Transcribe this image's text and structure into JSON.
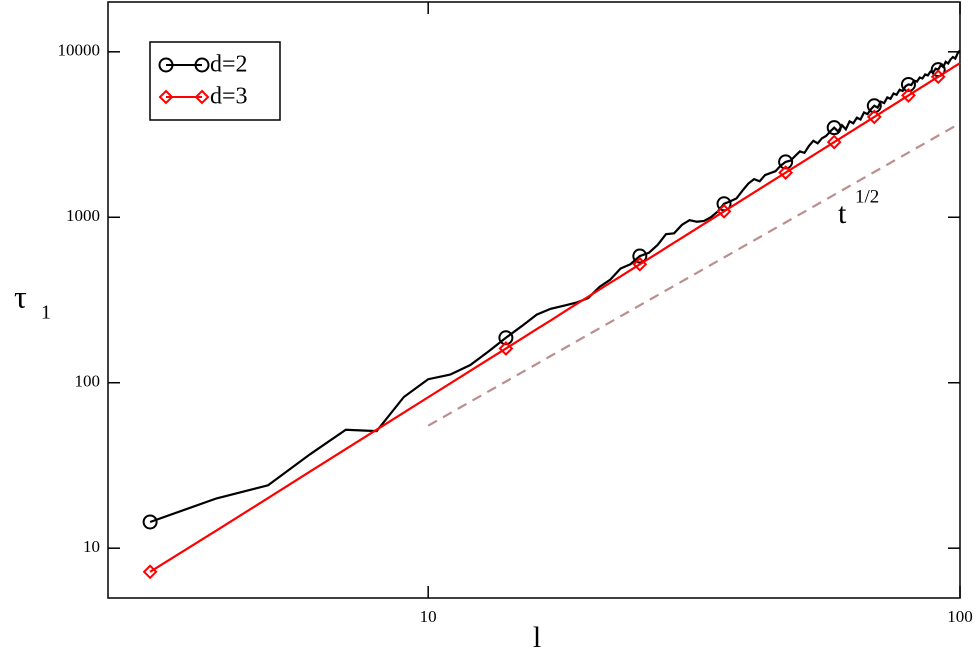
{
  "chart_data": {
    "type": "line",
    "xlabel": "l",
    "ylabel": {
      "text": "τ",
      "subscript": "1"
    },
    "log_x": true,
    "log_y": true,
    "xlim": [
      2.5,
      100
    ],
    "ylim": [
      5,
      20000
    ],
    "xticks": [
      10,
      100
    ],
    "yticks": [
      10,
      100,
      1000,
      10000
    ],
    "legend": "upper-left",
    "x": [
      3,
      4,
      5,
      6,
      7,
      8,
      9,
      10,
      11,
      12,
      13,
      14,
      15,
      16,
      17,
      18,
      19,
      20,
      21,
      22,
      23,
      24,
      25,
      26,
      27,
      28,
      29,
      30,
      31,
      32,
      33,
      34,
      35,
      36,
      37,
      38,
      39,
      40,
      41,
      42,
      43,
      44,
      45,
      46,
      47,
      48,
      49,
      50,
      51,
      52,
      53,
      54,
      55,
      56,
      57,
      58,
      59,
      60,
      61,
      62,
      63,
      64,
      65,
      66,
      67,
      68,
      69,
      70,
      71,
      72,
      73,
      74,
      75,
      76,
      77,
      78,
      79,
      80,
      81,
      82,
      83,
      84,
      85,
      86,
      87,
      88,
      89,
      90,
      91,
      92,
      93,
      94,
      95,
      96,
      97,
      98,
      99,
      100
    ],
    "series": [
      {
        "name": "d=2",
        "color": "#000000",
        "marker": "circle",
        "marker_every": 11,
        "values": [
          14.4,
          20,
          24,
          37,
          52,
          51,
          82,
          105,
          112,
          128,
          155,
          187,
          220,
          258,
          280,
          292,
          305,
          325,
          380,
          420,
          490,
          520,
          583,
          610,
          680,
          790,
          800,
          900,
          960,
          940,
          950,
          1000,
          1080,
          1206,
          1250,
          1300,
          1450,
          1600,
          1700,
          1650,
          1800,
          1850,
          1900,
          2050,
          2160,
          2200,
          2350,
          2500,
          2450,
          2700,
          2900,
          2800,
          3000,
          3100,
          3300,
          3480,
          3300,
          3600,
          3400,
          3800,
          3700,
          4000,
          3900,
          4300,
          4200,
          4500,
          4720,
          4600,
          5000,
          4900,
          5300,
          5200,
          5600,
          5500,
          5900,
          5800,
          6200,
          6350,
          6300,
          6700,
          6600,
          7000,
          6900,
          7300,
          7200,
          7600,
          7500,
          7900,
          7800,
          8300,
          8100,
          8700,
          8500,
          9000,
          9300,
          9100,
          9800,
          10200
        ]
      },
      {
        "name": "d=3",
        "color": "#ff0000",
        "marker": "diamond",
        "marker_every": 11,
        "values": [
          7.2,
          12.8,
          20.1,
          29.1,
          39.7,
          52.0,
          66.0,
          81.7,
          99.0,
          118,
          138.8,
          161,
          185,
          211,
          238,
          268,
          299,
          331,
          366,
          402,
          439,
          479,
          520,
          563,
          607,
          654,
          702,
          751,
          803,
          856,
          911,
          967,
          1026,
          1086,
          1148,
          1211,
          1277,
          1344,
          1412,
          1483,
          1555,
          1629,
          1704,
          1782,
          1861,
          1941,
          2024,
          2108,
          2195,
          2282,
          2372,
          2463,
          2556,
          2651,
          2747,
          2847,
          2946,
          3047,
          3152,
          3256,
          3362,
          3473,
          3582,
          3693,
          3809,
          3924,
          4041,
          4162,
          4282,
          4404,
          4531,
          4655,
          4782,
          4911,
          5045,
          5177,
          5311,
          5451,
          5589,
          5727,
          5868,
          6015,
          6160,
          6305,
          6453,
          6608,
          6759,
          6912,
          7066,
          7229,
          7387,
          7547,
          7708,
          7871,
          8044,
          8210,
          8379,
          8553
        ]
      },
      {
        "color": "#bc8f8f",
        "dashed": true,
        "x": [
          10,
          100
        ],
        "values": [
          55,
          3700
        ]
      }
    ],
    "annotations": [
      {
        "text": "t",
        "superscript": "1/2",
        "color": "#bc8f8f"
      }
    ]
  }
}
